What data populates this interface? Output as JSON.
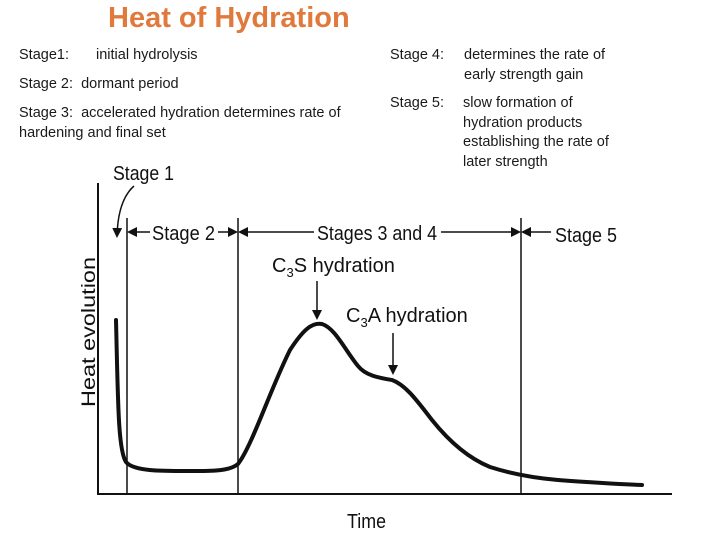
{
  "title": "Heat of Hydration",
  "stages_left": [
    {
      "label": "Stage1:",
      "text": "initial hydrolysis"
    },
    {
      "label": "Stage 2:",
      "text": "dormant period"
    },
    {
      "label": "Stage 3:",
      "text": "accelerated hydration determines rate of hardening and final set"
    }
  ],
  "stages_right": [
    {
      "label": "Stage 4:",
      "lines": [
        "determines the rate of",
        "early strength gain"
      ]
    },
    {
      "label": "Stage 5:",
      "lines": [
        "slow formation of",
        "hydration products",
        "establishing the rate of",
        "later strength"
      ]
    }
  ],
  "diagram": {
    "y_axis_label": "Heat evolution",
    "x_axis_label": "Time",
    "stage1": "Stage 1",
    "stage2": "Stage 2",
    "stages34": "Stages 3 and 4",
    "stage5": "Stage 5",
    "c3s": {
      "c": "C",
      "sub": "3",
      "rest": "S hydration"
    },
    "c3a": {
      "c": "C",
      "sub": "3",
      "rest": "A hydration"
    }
  }
}
